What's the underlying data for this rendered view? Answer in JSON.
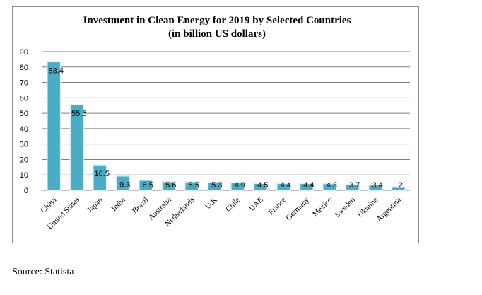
{
  "chart_data": {
    "type": "bar",
    "title": "Investment in Clean Energy for 2019 by Selected Countries",
    "subtitle": "(in billion US dollars)",
    "categories": [
      "China",
      "United States",
      "Japan",
      "India",
      "Brazil",
      "Australia",
      "Netherlands",
      "U.K",
      "Chile",
      "UAE",
      "France",
      "Germany",
      "Mexico",
      "Sweden",
      "Ukraine",
      "Argentina"
    ],
    "values": [
      83.4,
      55.5,
      16.5,
      9.3,
      6.5,
      5.6,
      5.5,
      5.3,
      4.9,
      4.5,
      4.4,
      4.4,
      4.3,
      3.7,
      3.4,
      2
    ],
    "value_labels": [
      "83.4",
      "55.5",
      "16.5",
      "9.3",
      "6.5",
      "5.6",
      "5.5",
      "5.3",
      "4.9",
      "4.5",
      "4.4",
      "4.4",
      "4.3",
      "3.7",
      "3.4",
      "2"
    ],
    "yticks": [
      0,
      10,
      20,
      30,
      40,
      50,
      60,
      70,
      80,
      90
    ],
    "ylim": [
      0,
      90
    ],
    "xlabel": "",
    "ylabel": "",
    "grid": true,
    "legend": "none",
    "bar_color": "#4bacc6",
    "bar_edge_color": "#d9eef5"
  },
  "source": "Source: Statista"
}
